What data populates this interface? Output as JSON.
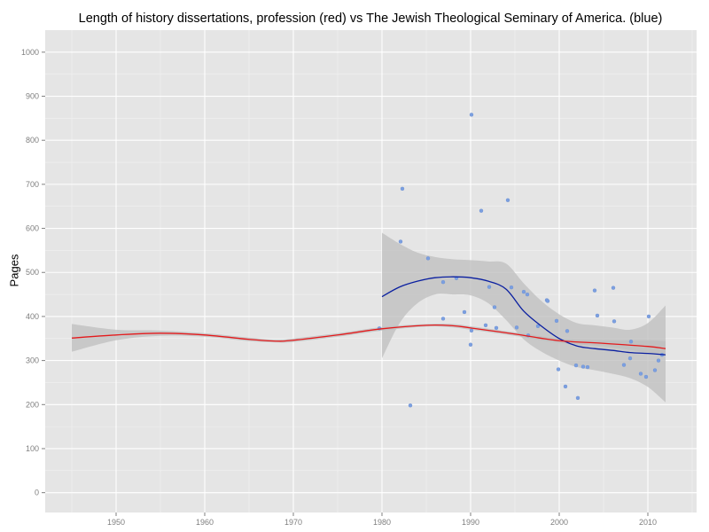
{
  "chart_data": {
    "type": "scatter",
    "title": "Length of history dissertations, profession (red) vs The Jewish Theological Seminary of America. (blue)",
    "xlabel": "",
    "ylabel": "Pages",
    "xlim": [
      1942,
      2015.5
    ],
    "ylim": [
      -45,
      1050
    ],
    "x_ticks": [
      1950,
      1960,
      1970,
      1980,
      1990,
      2000,
      2010
    ],
    "y_ticks": [
      0,
      100,
      200,
      300,
      400,
      500,
      600,
      700,
      800,
      900,
      1000
    ],
    "grid": true,
    "colors": {
      "panel": "#e5e5e5",
      "grid_major": "#ffffff",
      "grid_minor": "#f2f2f2",
      "points": "#7b9fe0",
      "blue_line": "#0a1fa0",
      "red_line": "#e41a1c",
      "ribbon": "#bdbdbd",
      "tick_text": "#7f7f7f"
    },
    "series": [
      {
        "type": "points",
        "color": "#7b9fe0",
        "points": [
          [
            1979.7,
            373
          ],
          [
            1982.1,
            570
          ],
          [
            1982.3,
            690
          ],
          [
            1983.2,
            198
          ],
          [
            1985.2,
            532
          ],
          [
            1986.9,
            395
          ],
          [
            1986.9,
            478
          ],
          [
            1988.4,
            487
          ],
          [
            1989.3,
            410
          ],
          [
            1990.1,
            858
          ],
          [
            1990.0,
            336
          ],
          [
            1990.1,
            368
          ],
          [
            1991.2,
            640
          ],
          [
            1991.7,
            380
          ],
          [
            1992.1,
            467
          ],
          [
            1992.7,
            421
          ],
          [
            1992.9,
            374
          ],
          [
            1994.2,
            664
          ],
          [
            1994.6,
            466
          ],
          [
            1995.2,
            375
          ],
          [
            1996.0,
            456
          ],
          [
            1996.4,
            450
          ],
          [
            1996.5,
            357
          ],
          [
            1997.6,
            378
          ],
          [
            1998.6,
            437
          ],
          [
            1998.7,
            435
          ],
          [
            1999.7,
            390
          ],
          [
            1999.9,
            280
          ],
          [
            2000.7,
            241
          ],
          [
            2000.9,
            367
          ],
          [
            2001.9,
            289
          ],
          [
            2002.1,
            215
          ],
          [
            2002.7,
            286
          ],
          [
            2003.2,
            285
          ],
          [
            2004.0,
            459
          ],
          [
            2004.3,
            402
          ],
          [
            2006.1,
            465
          ],
          [
            2006.2,
            389
          ],
          [
            2007.3,
            290
          ],
          [
            2008.0,
            305
          ],
          [
            2008.1,
            343
          ],
          [
            2009.2,
            270
          ],
          [
            2009.8,
            263
          ],
          [
            2010.1,
            400
          ],
          [
            2010.8,
            278
          ],
          [
            2011.2,
            300
          ],
          [
            2011.6,
            313
          ]
        ]
      },
      {
        "type": "smooth",
        "name": "",
        "color": "#0a1fa0",
        "x": [
          1980,
          1982,
          1984,
          1986,
          1988,
          1990,
          1992,
          1994,
          1996,
          1998,
          2000,
          2002,
          2004,
          2006,
          2008,
          2010,
          2012
        ],
        "y": [
          445,
          467,
          480,
          488,
          490,
          488,
          480,
          462,
          412,
          378,
          350,
          333,
          327,
          323,
          318,
          316,
          313
        ],
        "lower": [
          305,
          385,
          430,
          450,
          450,
          448,
          430,
          392,
          348,
          320,
          300,
          285,
          278,
          270,
          260,
          240,
          205
        ],
        "upper": [
          590,
          565,
          545,
          535,
          530,
          528,
          525,
          520,
          475,
          435,
          405,
          385,
          380,
          375,
          370,
          385,
          425
        ]
      },
      {
        "type": "smooth",
        "name": "",
        "color": "#e41a1c",
        "x": [
          1945,
          1950,
          1955,
          1960,
          1965,
          1968,
          1970,
          1975,
          1980,
          1985,
          1988,
          1990,
          1995,
          2000,
          2005,
          2010,
          2012
        ],
        "y": [
          351,
          358,
          362,
          358,
          348,
          344,
          346,
          358,
          372,
          380,
          379,
          374,
          360,
          345,
          339,
          332,
          327
        ],
        "lower": [
          320,
          346,
          356,
          354,
          344,
          341,
          342,
          354,
          368,
          377,
          375,
          370,
          356,
          340,
          332,
          318,
          310
        ],
        "upper": [
          383,
          370,
          368,
          362,
          352,
          347,
          350,
          362,
          376,
          383,
          383,
          378,
          364,
          350,
          346,
          346,
          344
        ]
      }
    ]
  }
}
